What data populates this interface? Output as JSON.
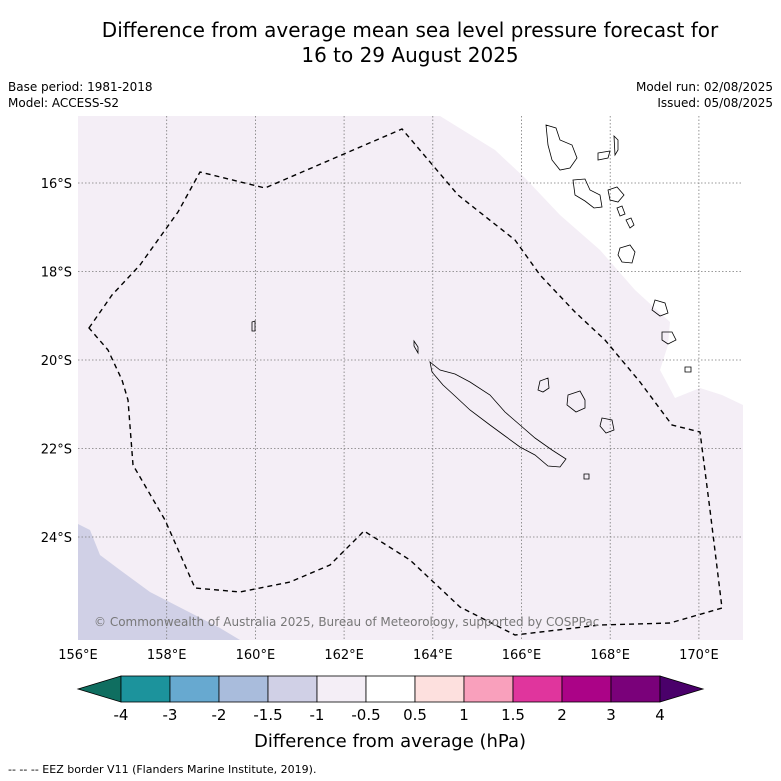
{
  "title_line1": "Difference from average mean sea level pressure forecast for",
  "title_line2": "16 to 29 August 2025",
  "base_period": "Base period: 1981-2018",
  "model": "Model: ACCESS-S2",
  "model_run": "Model run: 02/08/2025",
  "issued": "Issued: 05/08/2025",
  "copyright": "© Commonwealth of Australia 2025, Bureau of Meteorology, supported by COSPPac",
  "lon_labels": [
    "156°E",
    "158°E",
    "160°E",
    "162°E",
    "164°E",
    "166°E",
    "168°E",
    "170°E"
  ],
  "lat_labels": [
    "16°S",
    "18°S",
    "20°S",
    "22°S",
    "24°S"
  ],
  "colorbar": {
    "label": "Difference from average (hPa)",
    "tick_labels": [
      "-4",
      "-3",
      "-2",
      "-1.5",
      "-1",
      "-0.5",
      "0.5",
      "1",
      "1.5",
      "2",
      "3",
      "4"
    ],
    "colors": [
      "#0f6e60",
      "#1c939c",
      "#67a9d0",
      "#a9bcdc",
      "#d0d0e6",
      "#f4eef6",
      "#ffffff",
      "#fde0de",
      "#f9a0bc",
      "#e0359d",
      "#ab0387",
      "#7a017a",
      "#4a006a"
    ]
  },
  "map_fills": {
    "main": "#f4eef6",
    "lower": "#d0d0e6"
  },
  "footnote": "--  --  -- EEZ border V11 (Flanders Marine Institute, 2019)."
}
